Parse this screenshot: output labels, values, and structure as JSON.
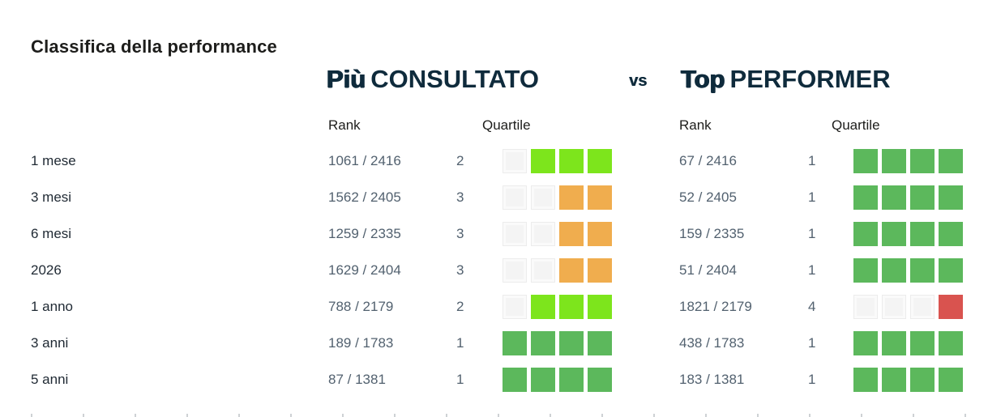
{
  "title": "Classifica della performance",
  "comparison": {
    "left": {
      "emphasis": "Più",
      "rest": "CONSULTATO"
    },
    "versus": "vs",
    "right": {
      "emphasis": "Top",
      "rest": "PERFORMER"
    }
  },
  "columns": {
    "rank": "Rank",
    "quartile": "Quartile"
  },
  "quartile_colors": {
    "1": "#5cb85c",
    "2": "#7de51c",
    "3": "#f0ad4e",
    "4": "#d9534f"
  },
  "empty_square_color": "#f4f4f4",
  "header_color": "#0f2b3c",
  "rows": [
    {
      "label": "1 mese",
      "consultato": {
        "rank": "1061 / 2416",
        "quartile": 2
      },
      "performer": {
        "rank": "67 / 2416",
        "quartile": 1
      }
    },
    {
      "label": "3 mesi",
      "consultato": {
        "rank": "1562 / 2405",
        "quartile": 3
      },
      "performer": {
        "rank": "52 / 2405",
        "quartile": 1
      }
    },
    {
      "label": "6 mesi",
      "consultato": {
        "rank": "1259 / 2335",
        "quartile": 3
      },
      "performer": {
        "rank": "159 / 2335",
        "quartile": 1
      }
    },
    {
      "label": "2026",
      "consultato": {
        "rank": "1629 / 2404",
        "quartile": 3
      },
      "performer": {
        "rank": "51 / 2404",
        "quartile": 1
      }
    },
    {
      "label": "1 anno",
      "consultato": {
        "rank": "788 / 2179",
        "quartile": 2
      },
      "performer": {
        "rank": "1821 / 2179",
        "quartile": 4
      }
    },
    {
      "label": "3 anni",
      "consultato": {
        "rank": "189 / 1783",
        "quartile": 1
      },
      "performer": {
        "rank": "438 / 1783",
        "quartile": 1
      }
    },
    {
      "label": "5 anni",
      "consultato": {
        "rank": "87 / 1381",
        "quartile": 1
      },
      "performer": {
        "rank": "183 / 1381",
        "quartile": 1
      }
    }
  ],
  "chart_data": {
    "type": "table",
    "title": "Classifica della performance",
    "groups": [
      "Più CONSULTATO",
      "Top PERFORMER"
    ],
    "columns": [
      "Rank",
      "Quartile"
    ],
    "categories": [
      "1 mese",
      "3 mesi",
      "6 mesi",
      "2026",
      "1 anno",
      "3 anni",
      "5 anni"
    ],
    "series": [
      {
        "name": "Più CONSULTATO rank",
        "values": [
          "1061 / 2416",
          "1562 / 2405",
          "1259 / 2335",
          "1629 / 2404",
          "788 / 2179",
          "189 / 1783",
          "87 / 1381"
        ]
      },
      {
        "name": "Più CONSULTATO quartile",
        "values": [
          2,
          3,
          3,
          3,
          2,
          1,
          1
        ]
      },
      {
        "name": "Top PERFORMER rank",
        "values": [
          "67 / 2416",
          "52 / 2405",
          "159 / 2335",
          "51 / 2404",
          "1821 / 2179",
          "438 / 1783",
          "183 / 1381"
        ]
      },
      {
        "name": "Top PERFORMER quartile",
        "values": [
          1,
          1,
          1,
          1,
          4,
          1,
          1
        ]
      }
    ],
    "legend": {
      "quartile_1_color": "#5cb85c",
      "quartile_2_color": "#7de51c",
      "quartile_3_color": "#f0ad4e",
      "quartile_4_color": "#d9534f",
      "squares_filled_rule": "filled squares = 5 - quartile, filled from the right"
    }
  }
}
